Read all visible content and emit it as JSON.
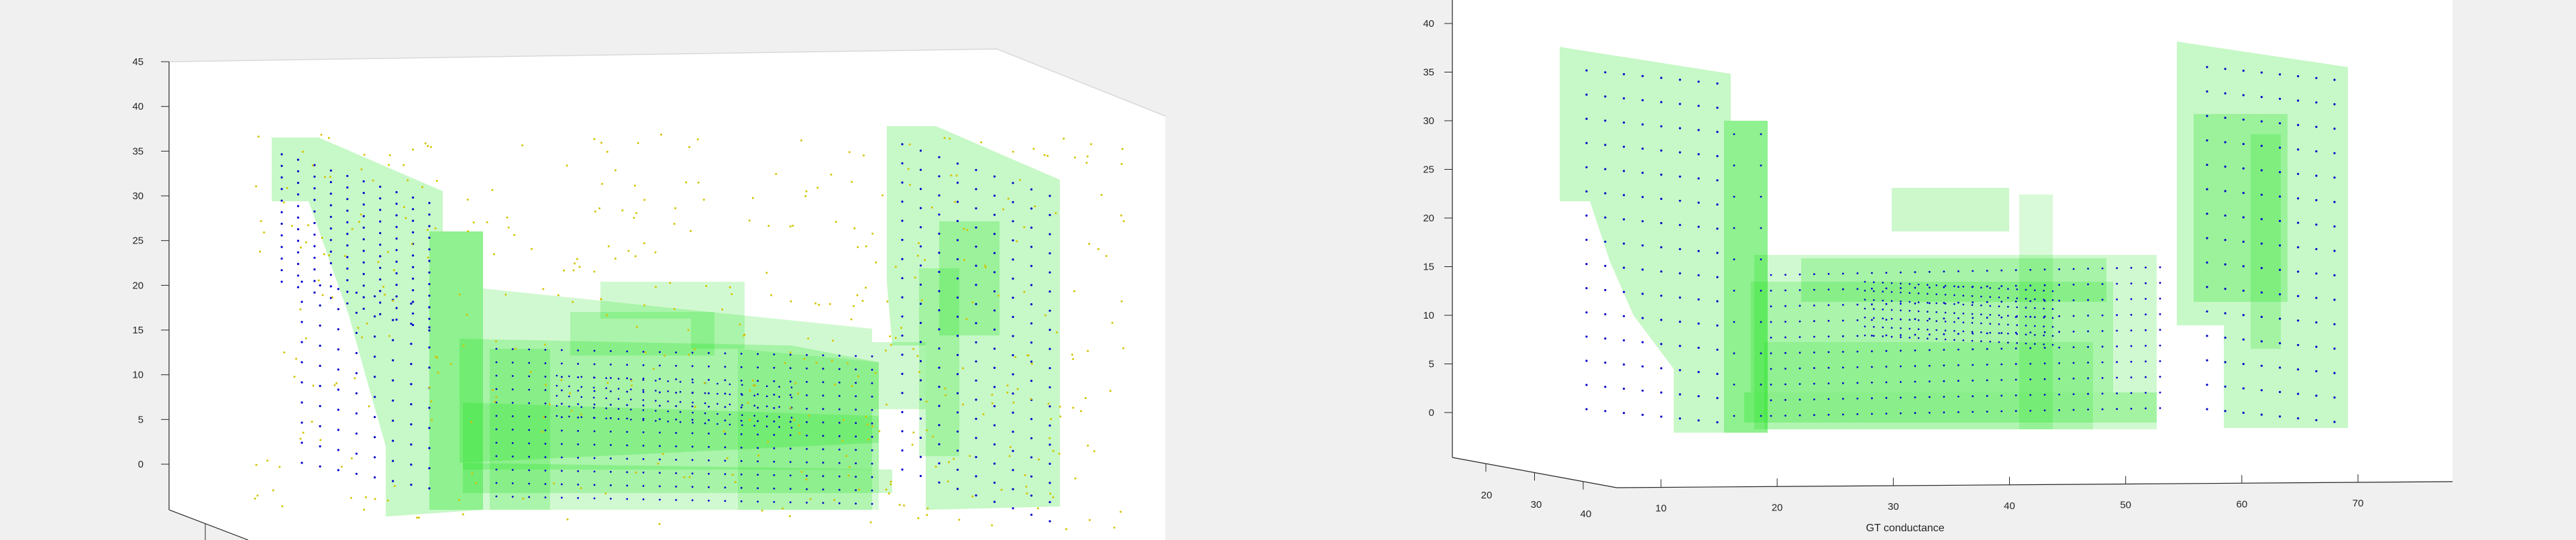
{
  "chart_data": [
    {
      "type": "scatter3d",
      "title": "",
      "xlabel": "",
      "ylabel": "",
      "zlabel": "",
      "zlim": [
        -5,
        45
      ],
      "z_ticks": [
        "0",
        "5",
        "10",
        "15",
        "20",
        "25",
        "30",
        "35",
        "40",
        "45"
      ],
      "grid": false,
      "point_colors": [
        "#0000cc",
        "#d4c400"
      ],
      "surface_color": "#00dd00"
    },
    {
      "type": "scatter3d",
      "title": "",
      "xlabel": "GT conductance",
      "ylabel": "",
      "zlabel": "",
      "zlim": [
        -5,
        42
      ],
      "z_ticks": [
        "0",
        "5",
        "10",
        "15",
        "20",
        "25",
        "30",
        "35",
        "40"
      ],
      "x_ticks": [
        "10",
        "20",
        "30",
        "40",
        "50",
        "60",
        "70"
      ],
      "y_ticks": [
        "20",
        "30",
        "40"
      ],
      "grid": false,
      "point_colors": [
        "#0000cc"
      ],
      "surface_color": "#00dd00"
    }
  ]
}
